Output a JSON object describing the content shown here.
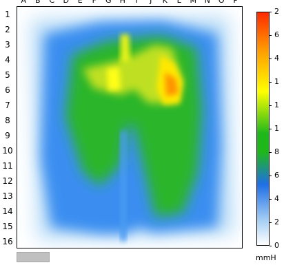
{
  "columns": [
    "A",
    "B",
    "C",
    "D",
    "E",
    "F",
    "G",
    "H",
    "I",
    "J",
    "K",
    "L",
    "M",
    "N",
    "O",
    "P"
  ],
  "rows": [
    "1",
    "2",
    "3",
    "4",
    "5",
    "6",
    "7",
    "8",
    "9",
    "10",
    "11",
    "12",
    "13",
    "14",
    "15",
    "16"
  ],
  "legend": {
    "ticks": [
      "2",
      "6",
      "4",
      "1",
      "1",
      "1",
      "8",
      "6",
      "4",
      "2",
      "0"
    ],
    "unit": "mmH",
    "colors": {
      "top": "#ff2a00",
      "orange": "#ff9a00",
      "yellow": "#ffff00",
      "green": "#1fb81a",
      "blue": "#1f6fe6",
      "light_blue": "#aad2f5",
      "bottom": "#ffffff"
    }
  }
}
